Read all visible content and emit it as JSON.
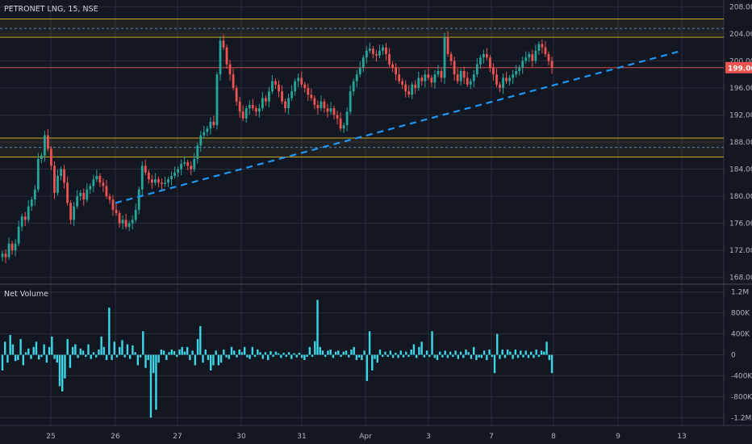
{
  "chart_data": [
    {
      "type": "candlestick",
      "title": "PETRONET LNG, 15, NSE",
      "y_ticks": [
        "208.00",
        "204.00",
        "200.00",
        "196.00",
        "192.00",
        "188.00",
        "184.00",
        "180.00",
        "176.00",
        "172.00",
        "168.00"
      ],
      "ylim": [
        167,
        209
      ],
      "x_ticks": [
        "25",
        "26",
        "27",
        "30",
        "31",
        "Apr",
        "3",
        "7",
        "8",
        "9",
        "13"
      ],
      "price_tag": "199.00",
      "zones": [
        {
          "low": 203.5,
          "high": 206.2,
          "mid": 204.8
        },
        {
          "low": 185.8,
          "high": 188.6,
          "mid": 187.2
        }
      ],
      "price_line": 199.0,
      "trendline": [
        {
          "date": "26",
          "price": 179.0
        },
        {
          "date": "13",
          "price": 201.5
        }
      ],
      "colors": {
        "up": "#26a69a",
        "down": "#ef5350",
        "zone": "#c8a826",
        "trend": "#2196f3",
        "background": "#131722",
        "grid": "#2a2e39",
        "text": "#b2b5be"
      },
      "candles": [
        171.5,
        171.0,
        173.0,
        172.0,
        173.0,
        175.5,
        177.0,
        176.5,
        178.5,
        179.5,
        181.0,
        185.5,
        186.0,
        189.0,
        187.0,
        184.5,
        180.5,
        183.0,
        184.0,
        182.0,
        179.0,
        176.5,
        178.5,
        180.0,
        180.5,
        179.5,
        181.0,
        181.5,
        182.5,
        183.0,
        182.0,
        181.5,
        180.0,
        179.5,
        178.0,
        177.5,
        176.0,
        176.5,
        175.5,
        176.0,
        176.5,
        178.0,
        181.0,
        184.5,
        183.5,
        182.5,
        182.0,
        182.5,
        182.0,
        181.8,
        182.0,
        182.5,
        183.0,
        183.5,
        184.0,
        184.8,
        185.0,
        184.5,
        184.0,
        185.5,
        187.5,
        189.0,
        189.5,
        190.0,
        191.0,
        190.5,
        198.0,
        203.0,
        202.0,
        199.5,
        198.0,
        196.0,
        194.0,
        192.5,
        191.5,
        193.0,
        193.5,
        193.0,
        192.5,
        193.0,
        194.5,
        194.0,
        195.5,
        197.0,
        196.5,
        195.5,
        194.0,
        193.0,
        194.5,
        195.5,
        197.0,
        197.5,
        196.5,
        196.0,
        195.0,
        194.5,
        193.5,
        193.0,
        194.0,
        193.0,
        192.5,
        193.0,
        192.0,
        191.5,
        190.0,
        190.5,
        192.5,
        195.5,
        197.0,
        198.0,
        199.0,
        200.5,
        201.5,
        201.8,
        201.0,
        200.8,
        201.5,
        202.0,
        201.0,
        199.5,
        199.0,
        198.0,
        197.0,
        196.5,
        195.5,
        195.0,
        196.5,
        196.0,
        197.5,
        197.0,
        198.0,
        197.5,
        196.8,
        198.0,
        198.5,
        197.5,
        203.5,
        201.0,
        200.0,
        198.0,
        197.0,
        198.5,
        197.5,
        196.5,
        197.0,
        198.0,
        199.5,
        200.5,
        201.0,
        200.5,
        199.0,
        198.0,
        196.5,
        196.0,
        197.5,
        197.0,
        197.5,
        198.0,
        198.5,
        199.0,
        200.0,
        200.5,
        201.0,
        200.0,
        201.5,
        202.5,
        202.0,
        201.0,
        200.0,
        199.0
      ],
      "net_volume": {
        "label": "Net Volume",
        "y_ticks": [
          "1.2M",
          "800K",
          "400K",
          "0",
          "-400K",
          "-800K",
          "-1.2M"
        ],
        "ylim": [
          -1350000,
          1350000
        ],
        "values": [
          -300000,
          250000,
          -150000,
          380000,
          200000,
          -120000,
          -100000,
          300000,
          -200000,
          50000,
          120000,
          -80000,
          150000,
          250000,
          -90000,
          -40000,
          200000,
          -150000,
          150000,
          350000,
          -80000,
          -150000,
          -600000,
          -700000,
          -450000,
          300000,
          -250000,
          150000,
          200000,
          -60000,
          120000,
          80000,
          -40000,
          200000,
          -80000,
          50000,
          -50000,
          100000,
          350000,
          150000,
          -100000,
          900000,
          -100000,
          250000,
          -50000,
          150000,
          280000,
          -50000,
          200000,
          -80000,
          180000,
          50000,
          -200000,
          -50000,
          450000,
          -250000,
          -100000,
          -1200000,
          -350000,
          -1050000,
          -150000,
          100000,
          80000,
          -100000,
          50000,
          100000,
          70000,
          -40000,
          100000,
          150000,
          60000,
          150000,
          -100000,
          80000,
          -200000,
          300000,
          550000,
          -150000,
          100000,
          -100000,
          -300000,
          -200000,
          80000,
          -200000,
          -150000,
          100000,
          -50000,
          -80000,
          150000,
          80000,
          -50000,
          100000,
          50000,
          150000,
          -50000,
          -80000,
          150000,
          -40000,
          100000,
          50000,
          -80000,
          50000,
          -100000,
          70000,
          -40000,
          60000,
          30000,
          -60000,
          40000,
          -40000,
          50000,
          -80000,
          30000,
          -50000,
          40000,
          -60000,
          -100000,
          -40000,
          150000,
          -40000,
          260000,
          1050000,
          150000,
          80000,
          -40000,
          80000,
          100000,
          -60000,
          60000,
          80000,
          -40000,
          60000,
          80000,
          -50000,
          100000,
          150000,
          -100000,
          -50000,
          -100000,
          80000,
          -500000,
          450000,
          -300000,
          -80000,
          -150000,
          100000,
          -40000,
          60000,
          -40000,
          80000,
          -60000,
          40000,
          -60000,
          80000,
          -50000,
          60000,
          -40000,
          100000,
          200000,
          -60000,
          150000,
          250000,
          -50000,
          80000,
          -40000,
          450000,
          -60000,
          -100000,
          60000,
          -50000,
          80000,
          -60000,
          60000,
          -40000,
          80000,
          -80000,
          60000,
          -60000,
          100000,
          50000,
          -80000,
          150000,
          -100000,
          -50000,
          -60000,
          80000,
          -100000,
          100000,
          -40000,
          -350000,
          400000,
          -80000,
          100000,
          -60000,
          100000,
          60000,
          -80000,
          100000,
          -60000,
          80000,
          -50000,
          80000,
          -60000,
          60000,
          -60000,
          100000,
          -40000,
          80000,
          60000,
          250000,
          -100000,
          -350000
        ]
      }
    }
  ]
}
